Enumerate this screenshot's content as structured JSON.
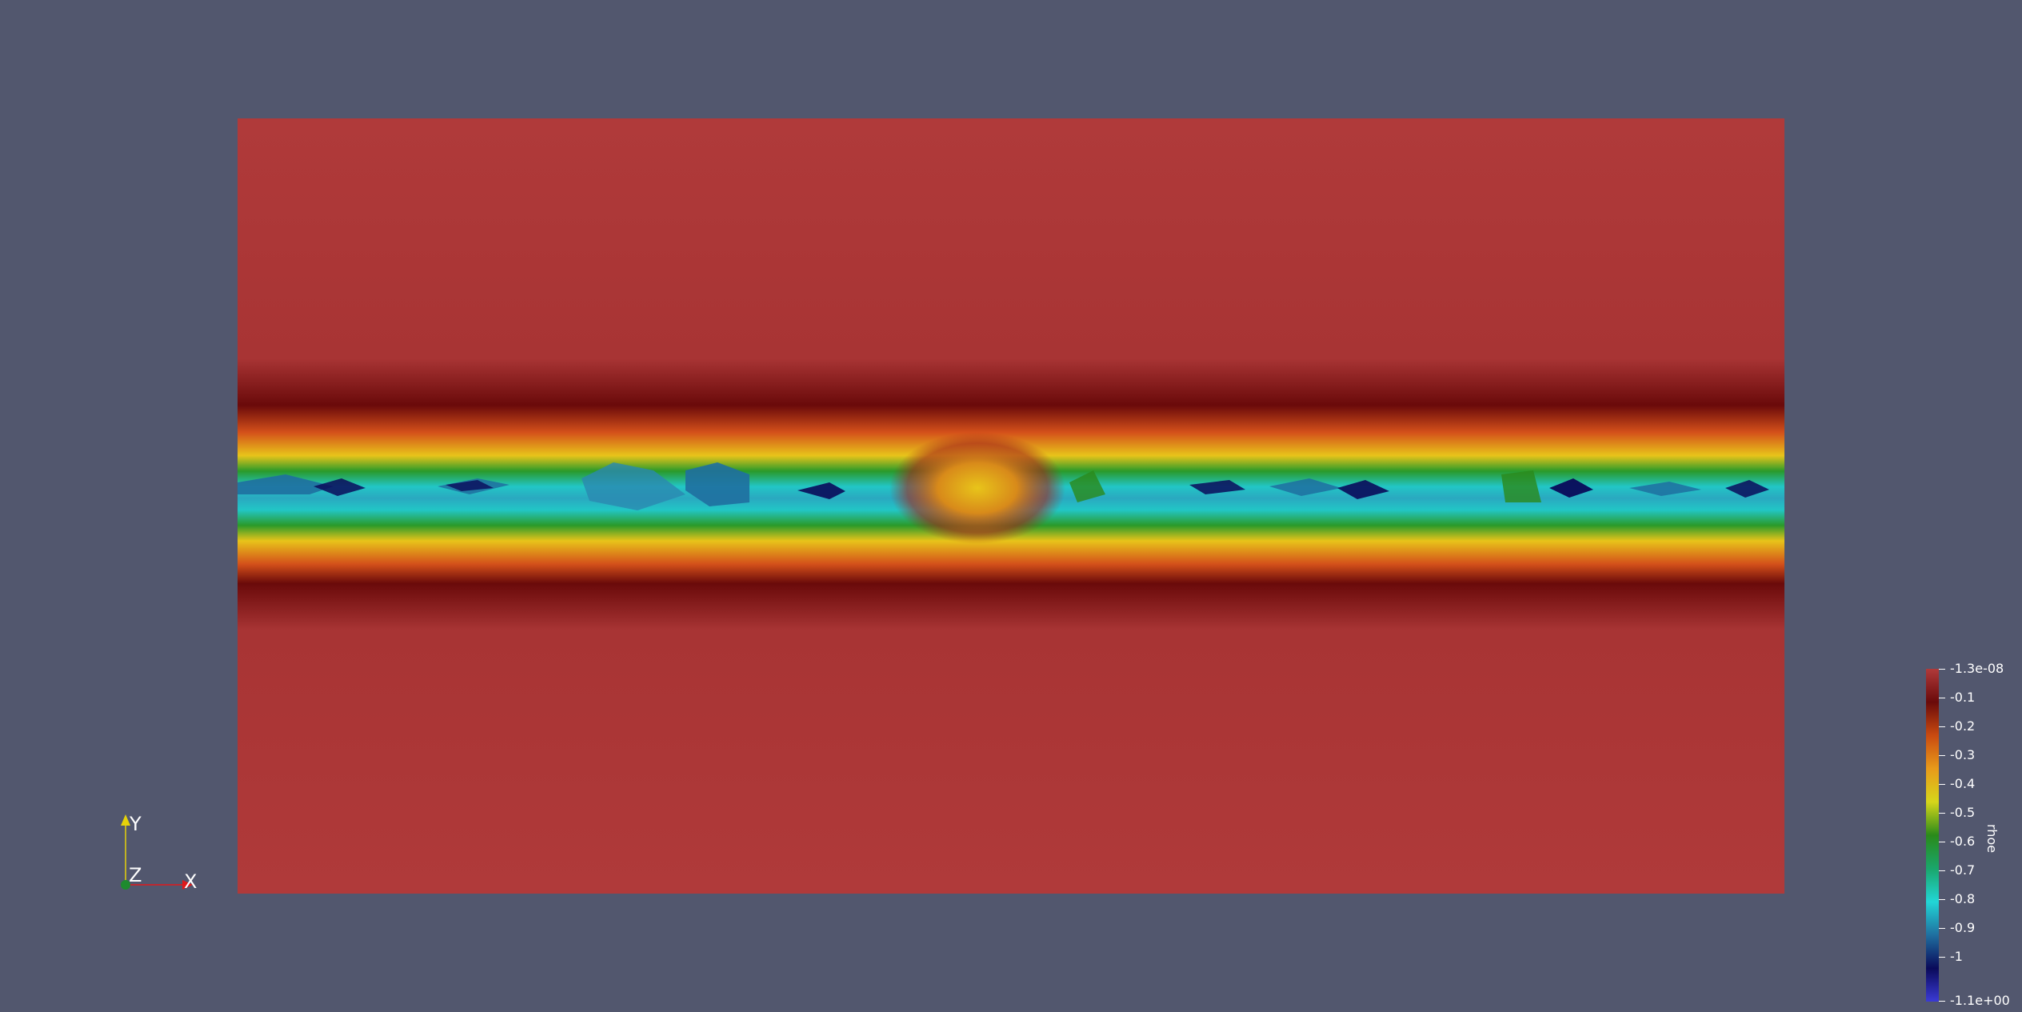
{
  "viewport": {
    "background_color": "#52576e"
  },
  "field": {
    "variable": "rhoe",
    "range": [
      -1.1,
      -1.3e-08
    ],
    "background_color": "#b03a3a"
  },
  "colorbar": {
    "title": "rhoe",
    "top_label": "-1.3e-08",
    "bottom_label": "-1.1e+00",
    "ticks": [
      "-0.1",
      "-0.2",
      "-0.3",
      "-0.4",
      "-0.5",
      "-0.6",
      "-0.7",
      "-0.8",
      "-0.9",
      "-1"
    ],
    "colors": [
      "#3b3bd6",
      "#0a0a5a",
      "#1f6fa0",
      "#22d6d6",
      "#1aa66b",
      "#2a8a1a",
      "#d6d61a",
      "#e89a1a",
      "#c94a10",
      "#6a0a0a",
      "#b03a3a"
    ]
  },
  "axes": {
    "x_label": "X",
    "y_label": "Y",
    "z_label": "Z",
    "x_color": "#e0191b",
    "y_color": "#e6d20a",
    "z_color": "#1e8a2e"
  }
}
